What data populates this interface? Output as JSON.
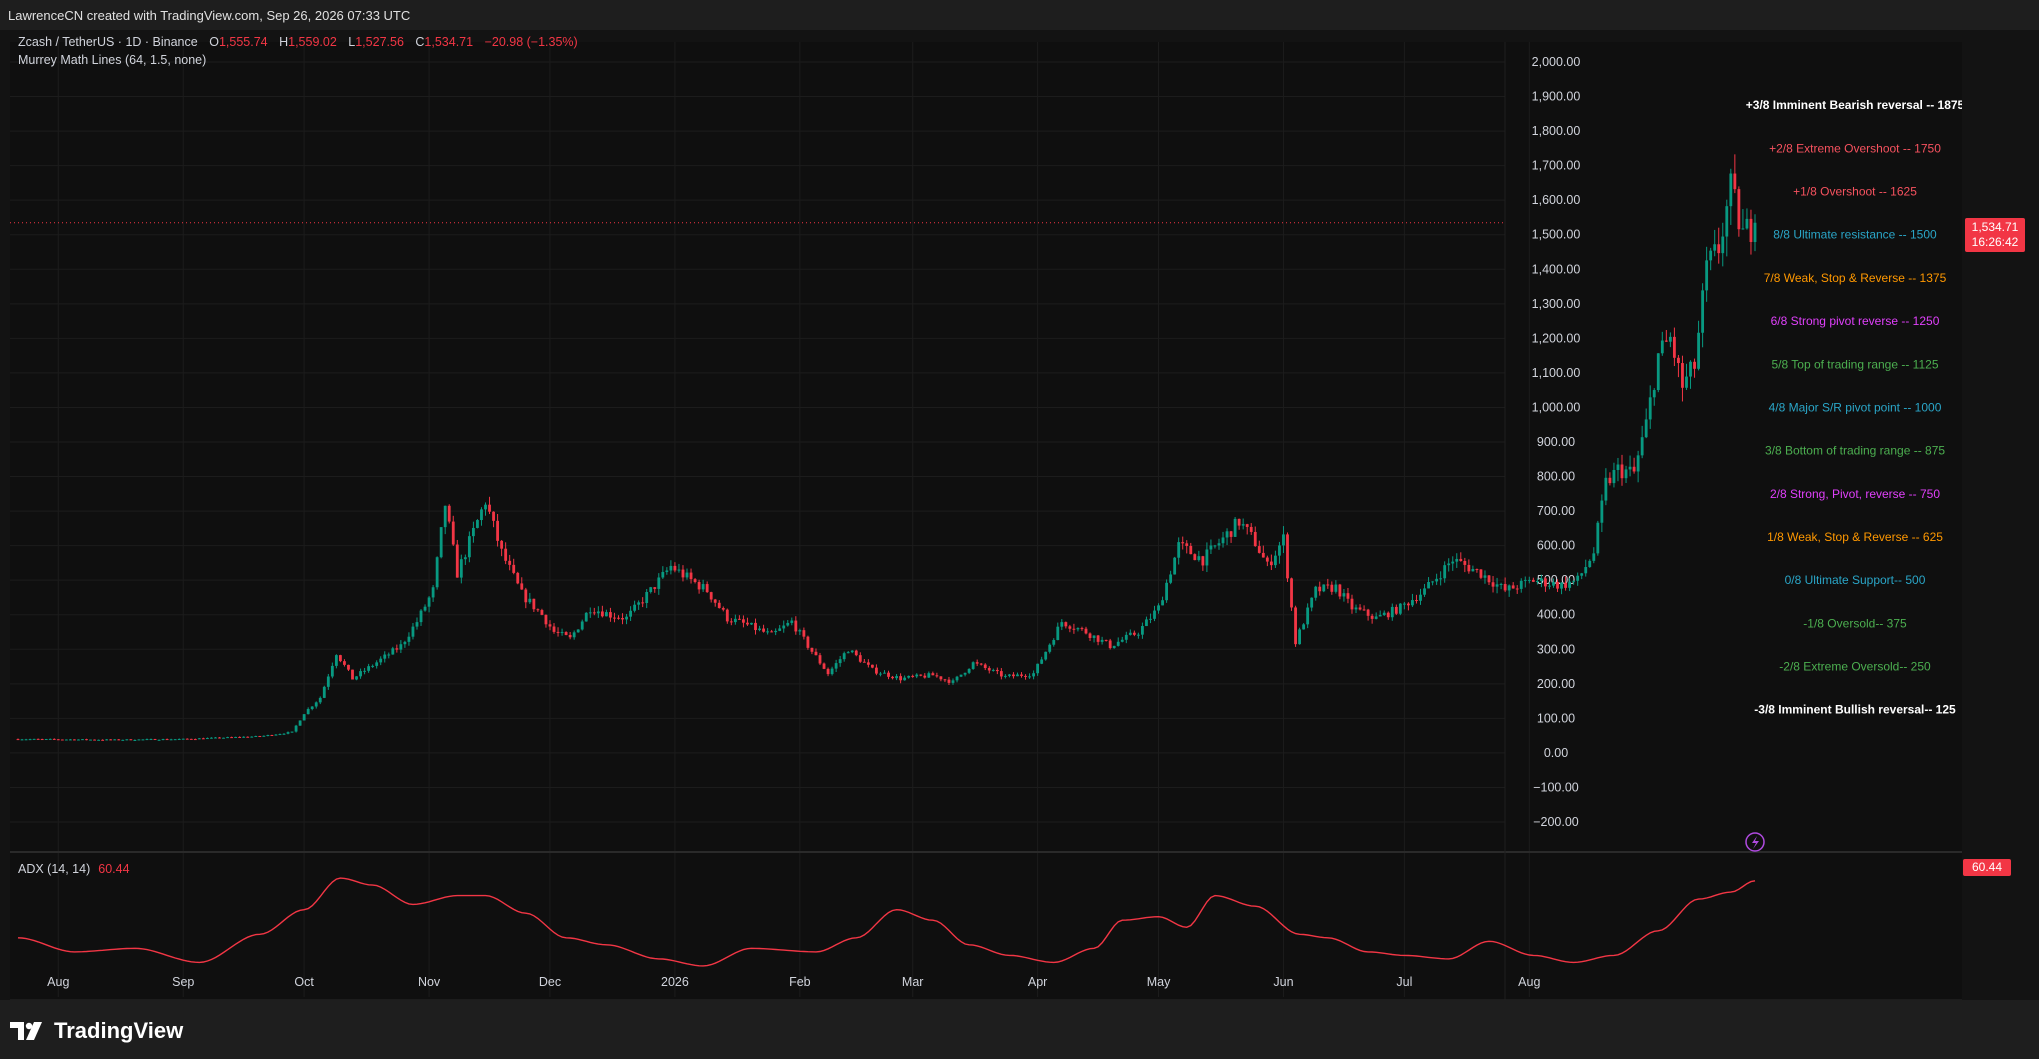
{
  "header": {
    "attribution": "LawrenceCN created with TradingView.com, Sep 26, 2026 07:33 UTC"
  },
  "legend": {
    "symbol": "Zcash / TetherUS · 1D · Binance",
    "open_label": "O",
    "open": "1,555.74",
    "high_label": "H",
    "high": "1,559.02",
    "low_label": "L",
    "low": "1,527.56",
    "close_label": "C",
    "close": "1,534.71",
    "change": "−20.98 (−1.35%)",
    "indicator": "Murrey Math Lines (64, 1.5, none)"
  },
  "price_badge": {
    "price": "1,534.71",
    "countdown": "16:26:42"
  },
  "adx": {
    "label": "ADX (14, 14)",
    "value": "60.44"
  },
  "brand": {
    "name": "TradingView"
  },
  "colors": {
    "up": "#089981",
    "down": "#f23645",
    "adx": "#f23645",
    "background": "#0f0f0f",
    "grid": "#1c1c1c"
  },
  "chart_data": {
    "type": "candlestick",
    "y_axis": {
      "min": -200,
      "max": 2000,
      "ticks": [
        "−200.00",
        "−100.00",
        "0.00",
        "100.00",
        "200.00",
        "300.00",
        "400.00",
        "500.00",
        "600.00",
        "700.00",
        "800.00",
        "900.00",
        "1,000.00",
        "1,100.00",
        "1,200.00",
        "1,300.00",
        "1,400.00",
        "1,500.00",
        "1,600.00",
        "1,700.00",
        "1,800.00",
        "1,900.00",
        "2,000.00"
      ]
    },
    "x_axis": {
      "labels": [
        {
          "label": "Aug",
          "date": "2025-08-01"
        },
        {
          "label": "Sep",
          "date": "2025-09-01"
        },
        {
          "label": "Oct",
          "date": "2025-10-01"
        },
        {
          "label": "Nov",
          "date": "2025-11-01"
        },
        {
          "label": "Dec",
          "date": "2025-12-01"
        },
        {
          "label": "2026",
          "date": "2026-01-01"
        },
        {
          "label": "Feb",
          "date": "2026-02-01"
        },
        {
          "label": "Mar",
          "date": "2026-03-01"
        },
        {
          "label": "Apr",
          "date": "2026-04-01"
        },
        {
          "label": "May",
          "date": "2026-05-01"
        },
        {
          "label": "Jun",
          "date": "2026-06-01"
        },
        {
          "label": "Jul",
          "date": "2026-07-01"
        },
        {
          "label": "Aug",
          "date": "2026-08-01"
        }
      ],
      "start": "2025-07-22",
      "end": "2026-09-26"
    },
    "murrey_lines": [
      {
        "label": "+3/8 Imminent Bearish reversal --  1875",
        "value": 1875,
        "color": "#ffffff"
      },
      {
        "label": "+2/8 Extreme Overshoot --  1750",
        "value": 1750,
        "color": "#f7525f"
      },
      {
        "label": "+1/8 Overshoot --  1625",
        "value": 1625,
        "color": "#f7525f"
      },
      {
        "label": "8/8 Ultimate resistance --  1500",
        "value": 1500,
        "color": "#2aa6c8"
      },
      {
        "label": "7/8 Weak, Stop & Reverse --  1375",
        "value": 1375,
        "color": "#ff9800"
      },
      {
        "label": "6/8 Strong pivot reverse --  1250",
        "value": 1250,
        "color": "#e040fb"
      },
      {
        "label": "5/8 Top of trading range --  1125",
        "value": 1125,
        "color": "#4caf50"
      },
      {
        "label": "4/8 Major S/R pivot point --  1000",
        "value": 1000,
        "color": "#2aa6c8"
      },
      {
        "label": "3/8 Bottom of trading range --  875",
        "value": 875,
        "color": "#4caf50"
      },
      {
        "label": "2/8 Strong, Pivot, reverse --  750",
        "value": 750,
        "color": "#e040fb"
      },
      {
        "label": "1/8 Weak, Stop & Reverse --  625",
        "value": 625,
        "color": "#ff9800"
      },
      {
        "label": "0/8 Ultimate Support--  500",
        "value": 500,
        "color": "#2aa6c8"
      },
      {
        "label": "-1/8 Oversold--  375",
        "value": 375,
        "color": "#4caf50"
      },
      {
        "label": "-2/8 Extreme Oversold--  250",
        "value": 250,
        "color": "#4caf50"
      },
      {
        "label": "-3/8 Imminent Bullish reversal--  125",
        "value": 125,
        "color": "#ffffff"
      }
    ],
    "price_path": [
      [
        "2025-07-22",
        40
      ],
      [
        "2025-08-15",
        38
      ],
      [
        "2025-09-01",
        40
      ],
      [
        "2025-09-20",
        48
      ],
      [
        "2025-09-28",
        60
      ],
      [
        "2025-10-01",
        115
      ],
      [
        "2025-10-05",
        160
      ],
      [
        "2025-10-09",
        290
      ],
      [
        "2025-10-13",
        215
      ],
      [
        "2025-10-20",
        270
      ],
      [
        "2025-10-25",
        310
      ],
      [
        "2025-10-29",
        380
      ],
      [
        "2025-11-02",
        470
      ],
      [
        "2025-11-05",
        720
      ],
      [
        "2025-11-08",
        520
      ],
      [
        "2025-11-12",
        640
      ],
      [
        "2025-11-15",
        730
      ],
      [
        "2025-11-19",
        580
      ],
      [
        "2025-11-24",
        460
      ],
      [
        "2025-11-29",
        400
      ],
      [
        "2025-12-02",
        350
      ],
      [
        "2025-12-06",
        330
      ],
      [
        "2025-12-11",
        420
      ],
      [
        "2025-12-16",
        400
      ],
      [
        "2025-12-20",
        390
      ],
      [
        "2025-12-26",
        470
      ],
      [
        "2025-12-31",
        540
      ],
      [
        "2026-01-05",
        500
      ],
      [
        "2026-01-09",
        470
      ],
      [
        "2026-01-14",
        390
      ],
      [
        "2026-01-19",
        370
      ],
      [
        "2026-01-25",
        340
      ],
      [
        "2026-01-30",
        380
      ],
      [
        "2026-02-03",
        310
      ],
      [
        "2026-02-08",
        230
      ],
      [
        "2026-02-13",
        300
      ],
      [
        "2026-02-19",
        240
      ],
      [
        "2026-02-26",
        215
      ],
      [
        "2026-03-06",
        225
      ],
      [
        "2026-03-11",
        205
      ],
      [
        "2026-03-16",
        260
      ],
      [
        "2026-03-24",
        220
      ],
      [
        "2026-03-31",
        230
      ],
      [
        "2026-04-07",
        380
      ],
      [
        "2026-04-13",
        350
      ],
      [
        "2026-04-19",
        310
      ],
      [
        "2026-04-26",
        350
      ],
      [
        "2026-05-01",
        420
      ],
      [
        "2026-05-06",
        600
      ],
      [
        "2026-05-12",
        560
      ],
      [
        "2026-05-17",
        620
      ],
      [
        "2026-05-21",
        670
      ],
      [
        "2026-05-25",
        610
      ],
      [
        "2026-05-28",
        540
      ],
      [
        "2026-06-01",
        620
      ],
      [
        "2026-06-04",
        320
      ],
      [
        "2026-06-09",
        470
      ],
      [
        "2026-06-14",
        480
      ],
      [
        "2026-06-18",
        420
      ],
      [
        "2026-06-24",
        390
      ],
      [
        "2026-06-30",
        420
      ],
      [
        "2026-07-06",
        470
      ],
      [
        "2026-07-13",
        560
      ],
      [
        "2026-07-20",
        520
      ],
      [
        "2026-07-26",
        470
      ],
      [
        "2026-08-02",
        500
      ],
      [
        "2026-08-09",
        485
      ],
      [
        "2026-08-13",
        500
      ],
      [
        "2026-08-17",
        580
      ],
      [
        "2026-08-20",
        780
      ],
      [
        "2026-08-23",
        820
      ],
      [
        "2026-08-27",
        810
      ],
      [
        "2026-08-30",
        950
      ],
      [
        "2026-09-02",
        1150
      ],
      [
        "2026-09-05",
        1200
      ],
      [
        "2026-09-08",
        1060
      ],
      [
        "2026-09-11",
        1120
      ],
      [
        "2026-09-14",
        1400
      ],
      [
        "2026-09-17",
        1460
      ],
      [
        "2026-09-20",
        1630
      ],
      [
        "2026-09-23",
        1500
      ],
      [
        "2026-09-26",
        1534.71
      ]
    ],
    "adx_path": [
      [
        "2025-07-22",
        28
      ],
      [
        "2025-08-05",
        20
      ],
      [
        "2025-08-20",
        22
      ],
      [
        "2025-09-05",
        14
      ],
      [
        "2025-09-20",
        30
      ],
      [
        "2025-10-01",
        44
      ],
      [
        "2025-10-10",
        62
      ],
      [
        "2025-10-18",
        58
      ],
      [
        "2025-10-28",
        47
      ],
      [
        "2025-11-08",
        52
      ],
      [
        "2025-11-15",
        52
      ],
      [
        "2025-11-25",
        42
      ],
      [
        "2025-12-05",
        28
      ],
      [
        "2025-12-15",
        24
      ],
      [
        "2025-12-28",
        16
      ],
      [
        "2026-01-08",
        12
      ],
      [
        "2026-01-20",
        22
      ],
      [
        "2026-02-05",
        20
      ],
      [
        "2026-02-15",
        28
      ],
      [
        "2026-02-25",
        44
      ],
      [
        "2026-03-06",
        38
      ],
      [
        "2026-03-15",
        24
      ],
      [
        "2026-03-25",
        18
      ],
      [
        "2026-04-05",
        14
      ],
      [
        "2026-04-15",
        22
      ],
      [
        "2026-04-22",
        38
      ],
      [
        "2026-05-01",
        40
      ],
      [
        "2026-05-08",
        34
      ],
      [
        "2026-05-15",
        52
      ],
      [
        "2026-05-25",
        46
      ],
      [
        "2026-06-05",
        30
      ],
      [
        "2026-06-12",
        28
      ],
      [
        "2026-06-22",
        20
      ],
      [
        "2026-07-01",
        18
      ],
      [
        "2026-07-12",
        16
      ],
      [
        "2026-07-22",
        26
      ],
      [
        "2026-08-02",
        18
      ],
      [
        "2026-08-12",
        14
      ],
      [
        "2026-08-22",
        18
      ],
      [
        "2026-09-02",
        32
      ],
      [
        "2026-09-12",
        50
      ],
      [
        "2026-09-20",
        54
      ],
      [
        "2026-09-26",
        60.44
      ]
    ],
    "adx_range": [
      0,
      70
    ]
  }
}
